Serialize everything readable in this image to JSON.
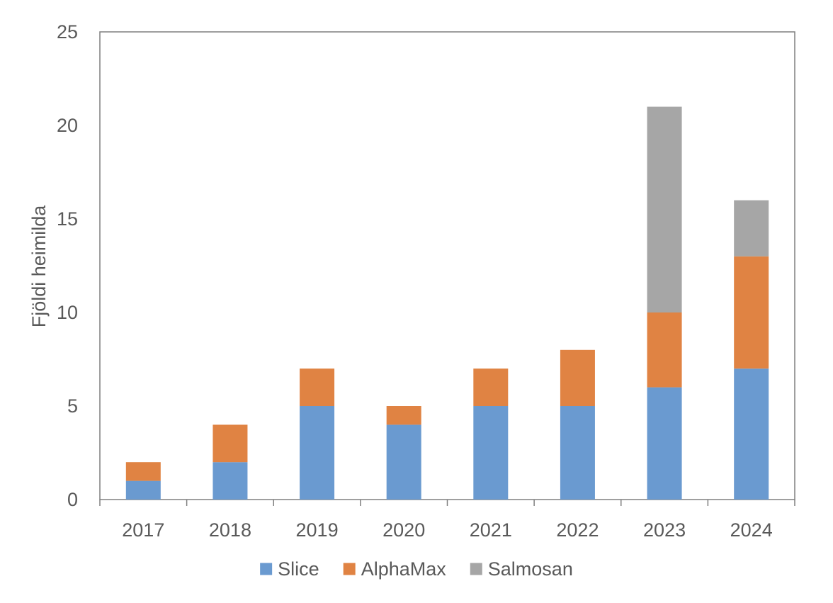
{
  "chart_data": {
    "type": "bar",
    "stacked": true,
    "categories": [
      "2017",
      "2018",
      "2019",
      "2020",
      "2021",
      "2022",
      "2023",
      "2024"
    ],
    "series": [
      {
        "name": "Slice",
        "color": "#6A9AD0",
        "values": [
          1,
          2,
          5,
          4,
          5,
          5,
          6,
          7
        ]
      },
      {
        "name": "AlphaMax",
        "color": "#E08343",
        "values": [
          1,
          2,
          2,
          1,
          2,
          3,
          4,
          6
        ]
      },
      {
        "name": "Salmosan",
        "color": "#A6A6A6",
        "values": [
          0,
          0,
          0,
          0,
          0,
          0,
          11,
          3
        ]
      }
    ],
    "title": "",
    "xlabel": "",
    "ylabel": "Fjöldi heimilda",
    "ylim": [
      0,
      25
    ],
    "yticks": [
      "0",
      "5",
      "10",
      "15",
      "20",
      "25"
    ],
    "grid": false,
    "legend": "bottom"
  }
}
